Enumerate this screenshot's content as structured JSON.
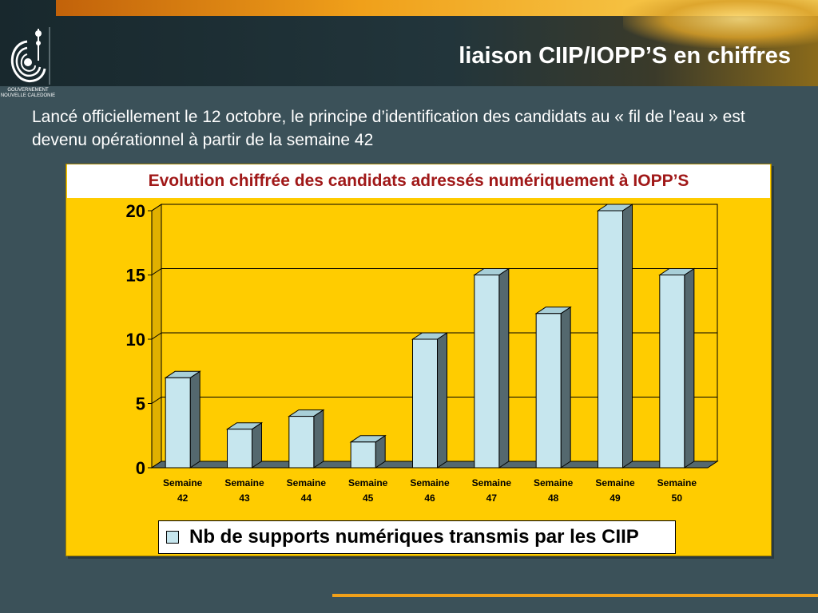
{
  "slide": {
    "title": "liaison CIIP/IOPP’S en chiffres",
    "intro": "Lancé officiellement le 12 octobre, le principe d’identification des candidats au « fil de l’eau » est devenu opérationnel à partir de la semaine 42",
    "logo_caption": "GOUVERNEMENT NOUVELLE CALEDONIE"
  },
  "colors": {
    "panel": "#ffcc00",
    "bar_front": "#c6e6ee",
    "bar_top": "#a8cfd8",
    "bar_side": "#54686e",
    "title_text": "#a01818"
  },
  "chart_data": {
    "type": "bar",
    "title": "Evolution chiffrée des candidats adressés numériquement à IOPP’S",
    "categories": [
      [
        "Semaine",
        "42"
      ],
      [
        "Semaine",
        "43"
      ],
      [
        "Semaine",
        "44"
      ],
      [
        "Semaine",
        "45"
      ],
      [
        "Semaine",
        "46"
      ],
      [
        "Semaine",
        "47"
      ],
      [
        "Semaine",
        "48"
      ],
      [
        "Semaine",
        "49"
      ],
      [
        "Semaine",
        "50"
      ]
    ],
    "series": [
      {
        "name": "Nb de supports numériques transmis par les CIIP",
        "values": [
          7,
          3,
          4,
          2,
          10,
          15,
          12,
          20,
          15
        ]
      }
    ],
    "ylim": [
      0,
      20
    ],
    "yticks": [
      0,
      5,
      10,
      15,
      20
    ],
    "grid": true,
    "legend": "bottom",
    "style": "3d"
  }
}
